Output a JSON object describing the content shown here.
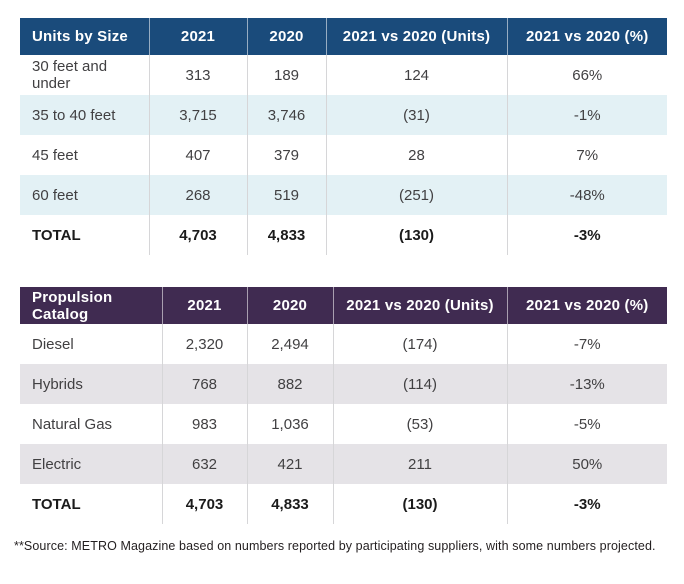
{
  "colors": {
    "table1_header_bg": "#1a4b7b",
    "table1_stripe_bg": "#e3f1f5",
    "table2_header_bg": "#402b51",
    "table2_stripe_bg": "#e5e3e7",
    "header_text": "#ffffff",
    "body_text": "#414042"
  },
  "chart_data": [
    {
      "type": "table",
      "title": "Units by Size",
      "columns": [
        "Units by Size",
        "2021",
        "2020",
        "2021 vs 2020 (Units)",
        "2021 vs 2020 (%)"
      ],
      "rows": [
        {
          "cells": [
            "30 feet and under",
            "313",
            "189",
            "124",
            "66%"
          ]
        },
        {
          "cells": [
            "35 to 40 feet",
            "3,715",
            "3,746",
            "(31)",
            "-1%"
          ]
        },
        {
          "cells": [
            "45 feet",
            "407",
            "379",
            "28",
            "7%"
          ]
        },
        {
          "cells": [
            "60 feet",
            "268",
            "519",
            "(251)",
            "-48%"
          ]
        },
        {
          "cells": [
            "TOTAL",
            "4,703",
            "4,833",
            "(130)",
            "-3%"
          ]
        }
      ]
    },
    {
      "type": "table",
      "title": "Propulsion Catalog",
      "columns": [
        "Propulsion Catalog",
        "2021",
        "2020",
        "2021 vs 2020 (Units)",
        "2021 vs 2020 (%)"
      ],
      "rows": [
        {
          "cells": [
            "Diesel",
            "2,320",
            "2,494",
            "(174)",
            "-7%"
          ]
        },
        {
          "cells": [
            "Hybrids",
            "768",
            "882",
            "(114)",
            "-13%"
          ]
        },
        {
          "cells": [
            "Natural Gas",
            "983",
            "1,036",
            "(53)",
            "-5%"
          ]
        },
        {
          "cells": [
            "Electric",
            "632",
            "421",
            "211",
            "50%"
          ]
        },
        {
          "cells": [
            "TOTAL",
            "4,703",
            "4,833",
            "(130)",
            "-3%"
          ]
        }
      ]
    }
  ],
  "footnote": "**Source: METRO Magazine based on numbers reported by participating suppliers, with some numbers projected."
}
